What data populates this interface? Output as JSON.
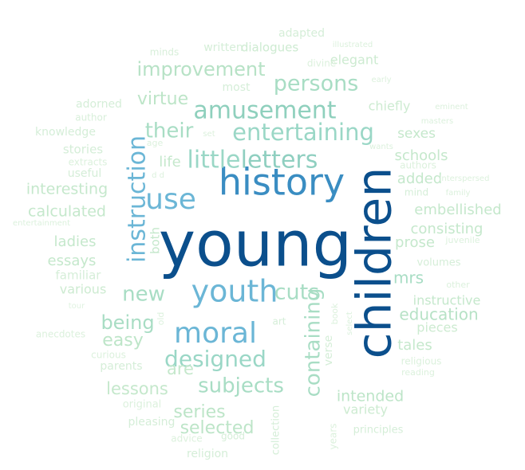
{
  "words": [
    {
      "text": "young",
      "color": "#0b4f8c"
    },
    {
      "text": "children",
      "color": "#0b4f8c"
    },
    {
      "text": "history",
      "color": "#3a8dc2"
    },
    {
      "text": "youth",
      "color": "#6bb6d6"
    },
    {
      "text": "moral",
      "color": "#6bb6d6"
    },
    {
      "text": "instruction",
      "color": "#6bb6d6"
    },
    {
      "text": "use",
      "color": "#6bb6d6"
    },
    {
      "text": "little",
      "color": "#9ad7c6"
    },
    {
      "text": "letters",
      "color": "#8fcfc0"
    },
    {
      "text": "amusement",
      "color": "#8fd0bd"
    },
    {
      "text": "entertaining",
      "color": "#9ad7c6"
    },
    {
      "text": "designed",
      "color": "#9ad7c6"
    },
    {
      "text": "containing",
      "color": "#a8ddc4"
    },
    {
      "text": "subjects",
      "color": "#a8ddc4"
    },
    {
      "text": "persons",
      "color": "#a8ddc4"
    },
    {
      "text": "improvement",
      "color": "#b7e2c6"
    },
    {
      "text": "their",
      "color": "#a8ddc4"
    },
    {
      "text": "virtue",
      "color": "#bde5c8"
    },
    {
      "text": "new",
      "color": "#a8ddc4"
    },
    {
      "text": "cuts",
      "color": "#a8ddc4"
    },
    {
      "text": "being",
      "color": "#a8ddc4"
    },
    {
      "text": "easy",
      "color": "#bde5c8"
    },
    {
      "text": "mrs",
      "color": "#a8ddc4"
    },
    {
      "text": "education",
      "color": "#b7e2c6"
    },
    {
      "text": "series",
      "color": "#bde5c8"
    },
    {
      "text": "selected",
      "color": "#bde5c8"
    },
    {
      "text": "intended",
      "color": "#bde5c8"
    },
    {
      "text": "lessons",
      "color": "#c5e8cc"
    },
    {
      "text": "are",
      "color": "#c5e8cc"
    },
    {
      "text": "interesting",
      "color": "#c5e8cc"
    },
    {
      "text": "calculated",
      "color": "#c5e8cc"
    },
    {
      "text": "ladies",
      "color": "#c5e8cc"
    },
    {
      "text": "essays",
      "color": "#c5e8cc"
    },
    {
      "text": "both",
      "color": "#c5e8cc"
    },
    {
      "text": "life",
      "color": "#c5e8cc"
    },
    {
      "text": "schools",
      "color": "#c5e8cc"
    },
    {
      "text": "added",
      "color": "#c5e8cc"
    },
    {
      "text": "embellished",
      "color": "#c5e8cc"
    },
    {
      "text": "consisting",
      "color": "#c5e8cc"
    },
    {
      "text": "prose",
      "color": "#c5e8cc"
    },
    {
      "text": "instructive",
      "color": "#c5e8cc"
    },
    {
      "text": "tales",
      "color": "#c5e8cc"
    },
    {
      "text": "sexes",
      "color": "#c5e8cc"
    },
    {
      "text": "chiefly",
      "color": "#cdebd1"
    },
    {
      "text": "elegant",
      "color": "#cdebd1"
    },
    {
      "text": "dialogues",
      "color": "#cdebd1"
    },
    {
      "text": "written",
      "color": "#d5eed8"
    },
    {
      "text": "adapted",
      "color": "#d5eed8"
    },
    {
      "text": "minds",
      "color": "#d8efda"
    },
    {
      "text": "illustrated",
      "color": "#dcf1dd"
    },
    {
      "text": "divine",
      "color": "#dcf1dd"
    },
    {
      "text": "early",
      "color": "#dcf1dd"
    },
    {
      "text": "most",
      "color": "#d5eed8"
    },
    {
      "text": "adorned",
      "color": "#d5eed8"
    },
    {
      "text": "author",
      "color": "#d8efda"
    },
    {
      "text": "knowledge",
      "color": "#d5eed8"
    },
    {
      "text": "stories",
      "color": "#d5eed8"
    },
    {
      "text": "extracts",
      "color": "#dcf1dd"
    },
    {
      "text": "useful",
      "color": "#d5eed8"
    },
    {
      "text": "entertainment",
      "color": "#dcf1dd"
    },
    {
      "text": "familiar",
      "color": "#d5eed8"
    },
    {
      "text": "various",
      "color": "#cdebd1"
    },
    {
      "text": "tour",
      "color": "#e0f3e1"
    },
    {
      "text": "anecdotes",
      "color": "#dcf1dd"
    },
    {
      "text": "curious",
      "color": "#dcf1dd"
    },
    {
      "text": "parents",
      "color": "#d5eed8"
    },
    {
      "text": "original",
      "color": "#dcf1dd"
    },
    {
      "text": "pleasing",
      "color": "#d5eed8"
    },
    {
      "text": "advice",
      "color": "#dcf1dd"
    },
    {
      "text": "good",
      "color": "#d5eed8"
    },
    {
      "text": "religion",
      "color": "#d5eed8"
    },
    {
      "text": "collection",
      "color": "#d5eed8"
    },
    {
      "text": "years",
      "color": "#dcf1dd"
    },
    {
      "text": "principles",
      "color": "#d5eed8"
    },
    {
      "text": "variety",
      "color": "#cdebd1"
    },
    {
      "text": "pieces",
      "color": "#cdebd1"
    },
    {
      "text": "religious",
      "color": "#dcf1dd"
    },
    {
      "text": "reading",
      "color": "#dcf1dd"
    },
    {
      "text": "volumes",
      "color": "#d5eed8"
    },
    {
      "text": "juvenile",
      "color": "#dcf1dd"
    },
    {
      "text": "other",
      "color": "#dcf1dd"
    },
    {
      "text": "family",
      "color": "#dcf1dd"
    },
    {
      "text": "mind",
      "color": "#d5eed8"
    },
    {
      "text": "interspersed",
      "color": "#dcf1dd"
    },
    {
      "text": "authors",
      "color": "#dcf1dd"
    },
    {
      "text": "wants",
      "color": "#dcf1dd"
    },
    {
      "text": "masters",
      "color": "#dcf1dd"
    },
    {
      "text": "eminent",
      "color": "#dcf1dd"
    },
    {
      "text": "age",
      "color": "#dcf1dd"
    },
    {
      "text": "set",
      "color": "#dcf1dd"
    },
    {
      "text": "d d",
      "color": "#dcf1dd"
    },
    {
      "text": "old",
      "color": "#dcf1dd"
    },
    {
      "text": "art",
      "color": "#d5eed8"
    },
    {
      "text": "book",
      "color": "#dcf1dd"
    },
    {
      "text": "select",
      "color": "#dcf1dd"
    },
    {
      "text": "verse",
      "color": "#d5eed8"
    }
  ]
}
